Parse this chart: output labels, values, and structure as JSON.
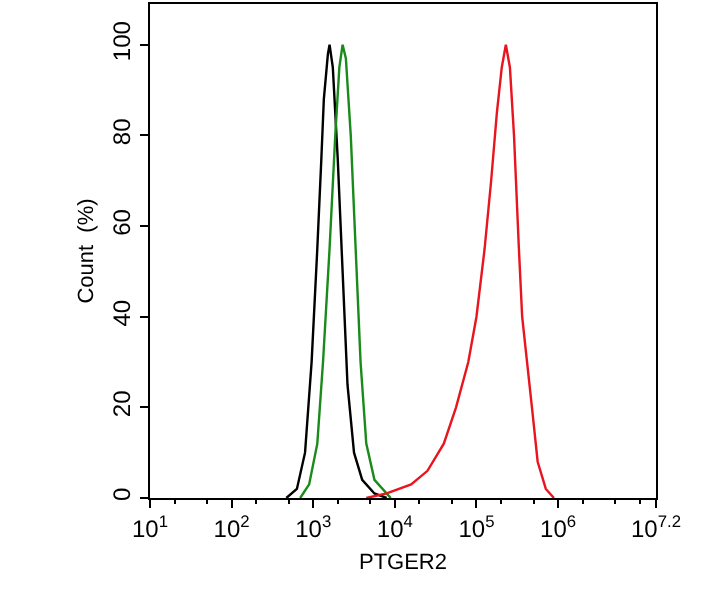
{
  "chart_data": {
    "type": "line",
    "xlabel": "PTGER2",
    "ylabel": "Count  (%)",
    "log": "x",
    "xlim": [
      10,
      15848932
    ],
    "ylim": [
      0,
      109
    ],
    "xticks": [
      {
        "value": 10,
        "label": "10$^{1}$"
      },
      {
        "value": 100,
        "label": "10$^{2}$"
      },
      {
        "value": 1000,
        "label": "10$^{3}$"
      },
      {
        "value": 10000,
        "label": "10$^{4}$"
      },
      {
        "value": 100000,
        "label": "10$^{5}$"
      },
      {
        "value": 1000000,
        "label": "10$^{6}$"
      },
      {
        "value": 15848932,
        "label": "10$^{7.2}$"
      }
    ],
    "yticks": [
      0,
      20,
      40,
      60,
      80,
      100
    ],
    "series": [
      {
        "color": "#000000",
        "x": [
          468,
          631,
          794,
          955,
          1122,
          1259,
          1349,
          1514,
          1585,
          1738,
          1995,
          2291,
          2630,
          3162,
          3981,
          5623,
          7943
        ],
        "values": [
          0,
          2,
          10,
          30,
          55,
          75,
          88,
          98,
          100,
          95,
          75,
          50,
          25,
          10,
          4,
          1,
          0
        ]
      },
      {
        "color": "#1a8a1a",
        "x": [
          692,
          891,
          1122,
          1318,
          1585,
          1862,
          2089,
          2291,
          2512,
          2884,
          3311,
          3802,
          4467,
          5623,
          8913
        ],
        "values": [
          0,
          3,
          12,
          30,
          55,
          80,
          95,
          100,
          97,
          80,
          55,
          30,
          12,
          4,
          0
        ]
      },
      {
        "color": "#e8141e",
        "x": [
          4467,
          7943,
          15849,
          25119,
          39811,
          56234,
          79433,
          100000,
          125893,
          151356,
          177828,
          204174,
          229087,
          257040,
          288403,
          331131,
          363078,
          416869,
          478630,
          562341,
          707946,
          891251
        ],
        "values": [
          0,
          1,
          3,
          6,
          12,
          20,
          30,
          40,
          55,
          70,
          85,
          95,
          100,
          95,
          80,
          55,
          40,
          30,
          20,
          8,
          2,
          0
        ]
      }
    ]
  }
}
